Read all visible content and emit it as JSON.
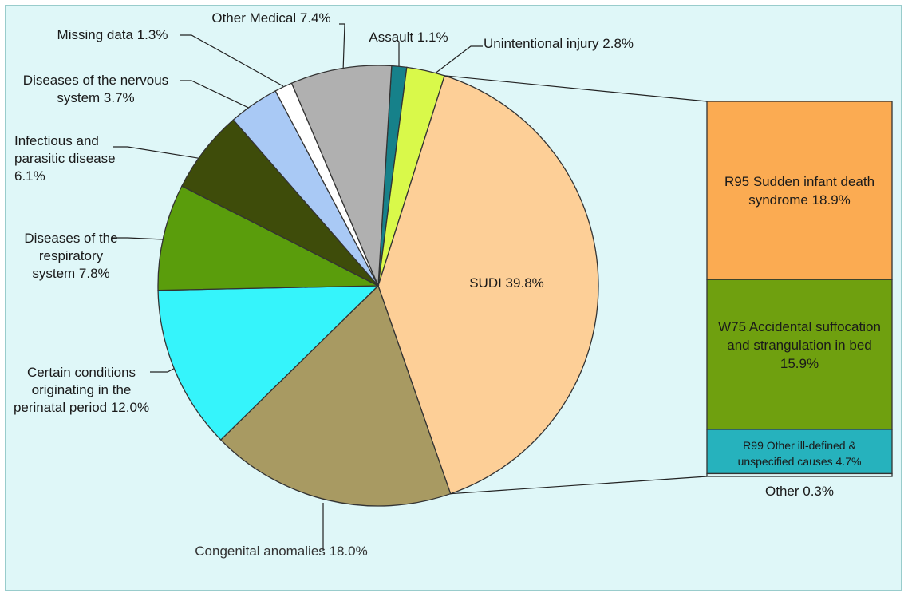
{
  "chart_data": {
    "type": "pie-of-bar",
    "values": [
      1.1,
      2.8,
      39.8,
      18.0,
      12.0,
      7.8,
      6.1,
      3.7,
      1.3,
      7.4
    ],
    "value_labels": [
      "Assault 1.1%",
      "Unintentional injury 2.8%",
      "SUDI 39.8%",
      "Congenital anomalies 18.0%",
      "Certain conditions originating in the perinatal period 12.0%",
      "Diseases of the respiratory system 7.8%",
      "Infectious and parasitic disease 6.1%",
      "Diseases of the nervous system 3.7%",
      "Missing data 1.3%",
      "Other Medical 7.4%"
    ],
    "colors": [
      "#16818a",
      "#d9f94a",
      "#fdcf97",
      "#a89a62",
      "#35f4fb",
      "#5a9d0c",
      "#3e4c0a",
      "#a9c9f5",
      "#ffffff",
      "#b0b0b0"
    ],
    "bar": {
      "values": [
        18.9,
        15.9,
        4.7,
        0.3
      ],
      "value_labels": [
        "R95 Sudden infant death syndrome 18.9%",
        "W75 Accidental suffocation and strangulation in bed 15.9%",
        "R99 Other ill-defined & unspecified causes 4.7%",
        "Other 0.3%"
      ],
      "colors": [
        "#fbab52",
        "#6fa00f",
        "#26b2bd",
        "#dff7f8"
      ]
    }
  }
}
